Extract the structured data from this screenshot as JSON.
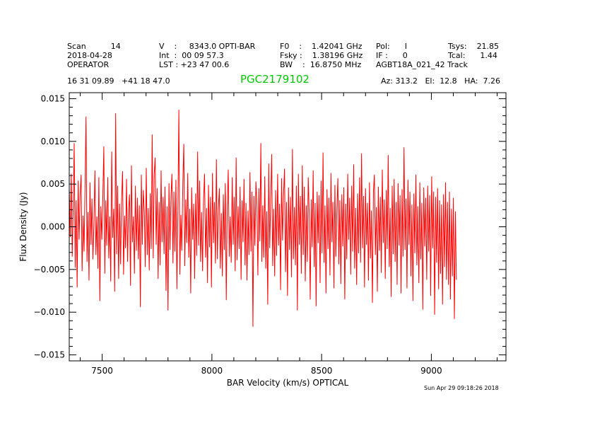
{
  "header": {
    "row1": [
      {
        "key": "scan",
        "text": "Scan          14"
      },
      {
        "key": "vel",
        "text": "V    :     8343.0 OPTI-BAR"
      },
      {
        "key": "f0",
        "text": "F0    :    1.42041 GHz"
      },
      {
        "key": "pol",
        "text": "Pol:      I"
      },
      {
        "key": "tsys",
        "text": "Tsys:    21.85"
      }
    ],
    "row2": [
      {
        "key": "date",
        "text": "2018-04-28"
      },
      {
        "key": "int",
        "text": "Int  :  00 09 57.3"
      },
      {
        "key": "fsky",
        "text": "Fsky :    1.38196 GHz"
      },
      {
        "key": "if",
        "text": "IF :      0"
      },
      {
        "key": "tcal",
        "text": "Tcal:      1.44"
      }
    ],
    "row3": [
      {
        "key": "observer",
        "text": "OPERATOR"
      },
      {
        "key": "lst",
        "text": "LST : +23 47 00.6"
      },
      {
        "key": "bw",
        "text": "BW    :  16.8750 MHz"
      },
      {
        "key": "proj",
        "text": "AGBT18A_021_42 Track"
      }
    ],
    "coords": "16 31 09.89   +41 18 47.0",
    "source": "PGC2179102",
    "azel": "Az: 313.2   El:  12.8   HA:  7.26"
  },
  "footer": {
    "timestamp": "Sun Apr 29 09:18:26 2018"
  },
  "colors": {
    "trace": "#ff0000",
    "source": "#00c800",
    "axes": "#000000"
  },
  "chart_data": {
    "type": "line",
    "title": "PGC2179102",
    "xlabel": "BAR Velocity (km/s) OPTICAL",
    "ylabel": "Flux Density (Jy)",
    "xlim": [
      7350,
      9340
    ],
    "ylim": [
      -0.0157,
      0.0157
    ],
    "xticks": [
      7500,
      8000,
      8500,
      9000
    ],
    "yticks": [
      -0.015,
      -0.01,
      -0.005,
      0.0,
      0.005,
      0.01,
      0.015
    ],
    "ytick_labels": [
      "−0.015",
      "−0.010",
      "−0.005",
      "0.000",
      "0.005",
      "0.010",
      "0.015"
    ],
    "series": [
      {
        "name": "spectrum",
        "x_start": 7350,
        "x_step": 4.5,
        "values": [
          0.0045,
          -0.0012,
          0.0062,
          -0.0035,
          0.0021,
          0.0098,
          -0.0048,
          0.0031,
          -0.0071,
          0.0054,
          -0.0015,
          0.0038,
          0.0061,
          -0.0052,
          0.0013,
          -0.0029,
          0.0047,
          0.0129,
          -0.0041,
          0.0017,
          -0.0063,
          0.0052,
          -0.0021,
          0.0033,
          -0.0038,
          0.0005,
          0.0066,
          -0.0033,
          0.0012,
          -0.0049,
          0.0058,
          -0.0087,
          0.0024,
          -0.0015,
          0.0035,
          0.0094,
          -0.0055,
          0.0031,
          -0.0022,
          0.0058,
          -0.0037,
          0.0012,
          -0.0064,
          0.0088,
          -0.0013,
          0.0021,
          -0.0076,
          0.0133,
          -0.0032,
          0.0048,
          -0.0061,
          0.0027,
          -0.0044,
          0.0031,
          0.0065,
          -0.0056,
          0.0013,
          -0.0025,
          0.0056,
          -0.0041,
          0.0019,
          0.0038,
          -0.0069,
          0.0072,
          -0.0018,
          0.0012,
          -0.0055,
          0.0048,
          -0.0028,
          0.0034,
          -0.0038,
          0.0025,
          -0.0094,
          0.0061,
          -0.0021,
          0.0043,
          0.0018,
          -0.0047,
          0.0069,
          -0.0033,
          0.0022,
          -0.0051,
          0.0039,
          -0.0026,
          0.0108,
          -0.0037,
          0.0061,
          0.0081,
          -0.0021,
          0.0045,
          -0.0061,
          0.0029,
          -0.0045,
          0.0066,
          -0.0018,
          0.0035,
          -0.0032,
          0.0047,
          -0.0075,
          0.0024,
          -0.0098,
          0.0051,
          -0.0027,
          0.0036,
          0.0062,
          -0.0043,
          0.0041,
          -0.0029,
          0.0055,
          -0.0073,
          0.0018,
          0.0137,
          -0.0056,
          0.0014,
          -0.0028,
          0.0051,
          0.0097,
          -0.0046,
          0.0032,
          -0.0019,
          0.0063,
          -0.0036,
          0.0021,
          -0.0078,
          0.0046,
          -0.0015,
          0.0027,
          -0.0061,
          0.0039,
          -0.0034,
          0.0088,
          -0.0022,
          0.0054,
          -0.0041,
          0.0017,
          -0.0052,
          0.0031,
          0.0062,
          -0.0036,
          0.0022,
          -0.0066,
          0.0049,
          -0.0024,
          0.0035,
          -0.0071,
          0.0063,
          -0.0019,
          0.0029,
          -0.0043,
          0.0079,
          -0.0038,
          0.0021,
          0.0045,
          -0.0049,
          0.0016,
          -0.0058,
          0.0038,
          -0.0027,
          0.0051,
          -0.0086,
          0.0023,
          0.0067,
          -0.0035,
          0.0012,
          -0.0042,
          0.0058,
          -0.0021,
          0.0035,
          -0.0052,
          0.0081,
          -0.0039,
          0.0024,
          -0.0026,
          0.0047,
          -0.0062,
          0.0031,
          -0.0018,
          0.0056,
          -0.0045,
          0.0028,
          -0.0063,
          0.0019,
          -0.0033,
          0.0064,
          -0.0029,
          0.0041,
          -0.0117,
          0.0036,
          -0.0022,
          0.0053,
          0.0028,
          -0.0057,
          0.0045,
          -0.0017,
          0.0098,
          -0.0041,
          0.0025,
          -0.0036,
          0.0059,
          -0.0049,
          0.0018,
          -0.0091,
          0.0074,
          -0.0025,
          0.0032,
          0.0085,
          -0.0046,
          0.0021,
          -0.0058,
          0.0043,
          -0.0034,
          0.0062,
          -0.0022,
          0.0027,
          -0.0074,
          0.0057,
          -0.0016,
          0.0038,
          0.0068,
          -0.0053,
          0.0029,
          -0.0081,
          0.0046,
          -0.0027,
          0.0035,
          -0.0059,
          0.0091,
          -0.0038,
          0.0023,
          -0.0045,
          0.0048,
          -0.0098,
          0.0062,
          -0.0021,
          0.0036,
          -0.0055,
          0.0072,
          -0.0033,
          0.0047,
          -0.0064,
          0.0025,
          -0.0041,
          0.0058,
          0.0016,
          -0.0085,
          0.0032,
          -0.0024,
          0.0066,
          -0.0047,
          0.0028,
          -0.0093,
          0.0041,
          -0.0019,
          0.0037,
          -0.0066,
          0.0054,
          -0.0031,
          0.0087,
          -0.0042,
          0.0025,
          -0.0078,
          0.0044,
          -0.0026,
          0.0034,
          -0.0057,
          0.0063,
          -0.0018,
          0.0029,
          -0.0072,
          0.0049,
          -0.0035,
          0.0021,
          0.0057,
          -0.0044,
          0.0031,
          -0.0067,
          0.0038,
          -0.0023,
          0.0046,
          -0.0085,
          0.0027,
          -0.0038,
          0.0062,
          -0.0015,
          0.0034,
          -0.0056,
          0.0048,
          -0.0029,
          0.0073,
          -0.0049,
          0.0022,
          -0.0068,
          0.0039,
          -0.0031,
          0.0058,
          -0.0042,
          0.0086,
          -0.0025,
          0.0036,
          -0.0071,
          0.0045,
          -0.0021,
          0.0028,
          -0.0063,
          0.0052,
          -0.0037,
          0.0019,
          -0.0089,
          0.0041,
          0.0061,
          -0.0033,
          0.0023,
          -0.0076,
          0.0047,
          -0.0028,
          0.0035,
          -0.0054,
          0.0067,
          -0.0019,
          0.0032,
          -0.0061,
          0.0043,
          -0.0026,
          0.0084,
          -0.0047,
          0.0022,
          -0.0082,
          0.0048,
          -0.0032,
          0.0056,
          -0.0041,
          0.0029,
          -0.0068,
          0.0051,
          -0.0022,
          0.0037,
          -0.0078,
          0.0044,
          -0.0035,
          0.0093,
          -0.0027,
          0.0033,
          -0.0072,
          0.0055,
          -0.0021,
          0.0041,
          -0.0058,
          0.0026,
          -0.0087,
          0.0039,
          -0.0031,
          0.0061,
          -0.0045,
          0.0024,
          -0.0066,
          0.0052,
          -0.0038,
          0.0028,
          -0.0097,
          0.0046,
          -0.0023,
          0.0034,
          -0.0062,
          0.0048,
          -0.0029,
          0.0037,
          -0.0081,
          0.0059,
          -0.0025,
          0.0041,
          -0.0103,
          0.0035,
          -0.0042,
          0.0045,
          -0.0073,
          0.0031,
          -0.0055,
          0.0026,
          -0.0091,
          0.0038,
          -0.0047,
          0.0052,
          -0.0062,
          0.0029,
          -0.0068,
          0.0041,
          -0.0085,
          0.0021,
          -0.0058,
          0.0034,
          -0.0108,
          0.0018,
          -0.0062
        ]
      }
    ]
  }
}
